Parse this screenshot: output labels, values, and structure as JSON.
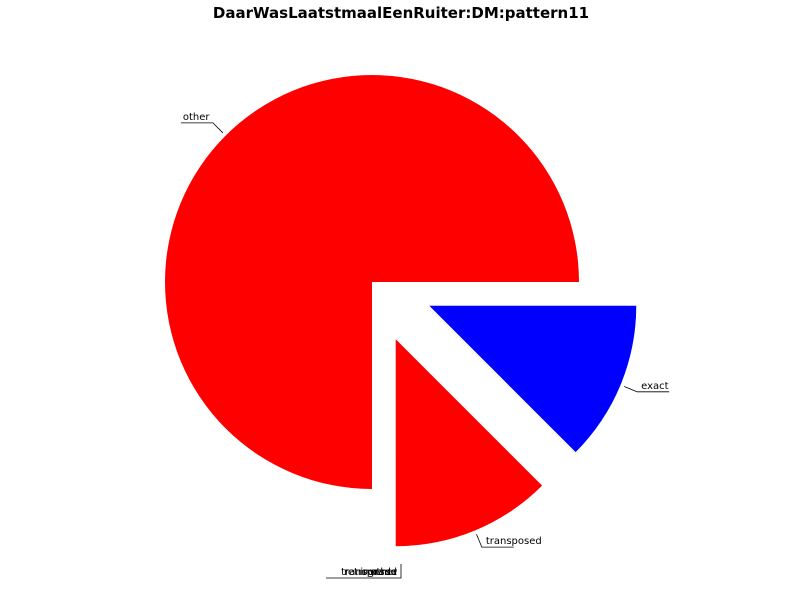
{
  "chart_data": {
    "type": "pie",
    "title": "DaarWasLaatstmaalEenRuiter:DM:pattern11",
    "slices": [
      {
        "label": "exact",
        "value": 12.5,
        "color": "#0000ff",
        "exploded": true
      },
      {
        "label": "transposed",
        "value": 12.5,
        "color": "#ff0000",
        "exploded": true
      },
      {
        "label": "other",
        "value": 75,
        "color": "#ff0000",
        "exploded": false
      }
    ],
    "overlapping_labels": [
      "transposed",
      "retrograde",
      "inverse",
      "other"
    ]
  }
}
